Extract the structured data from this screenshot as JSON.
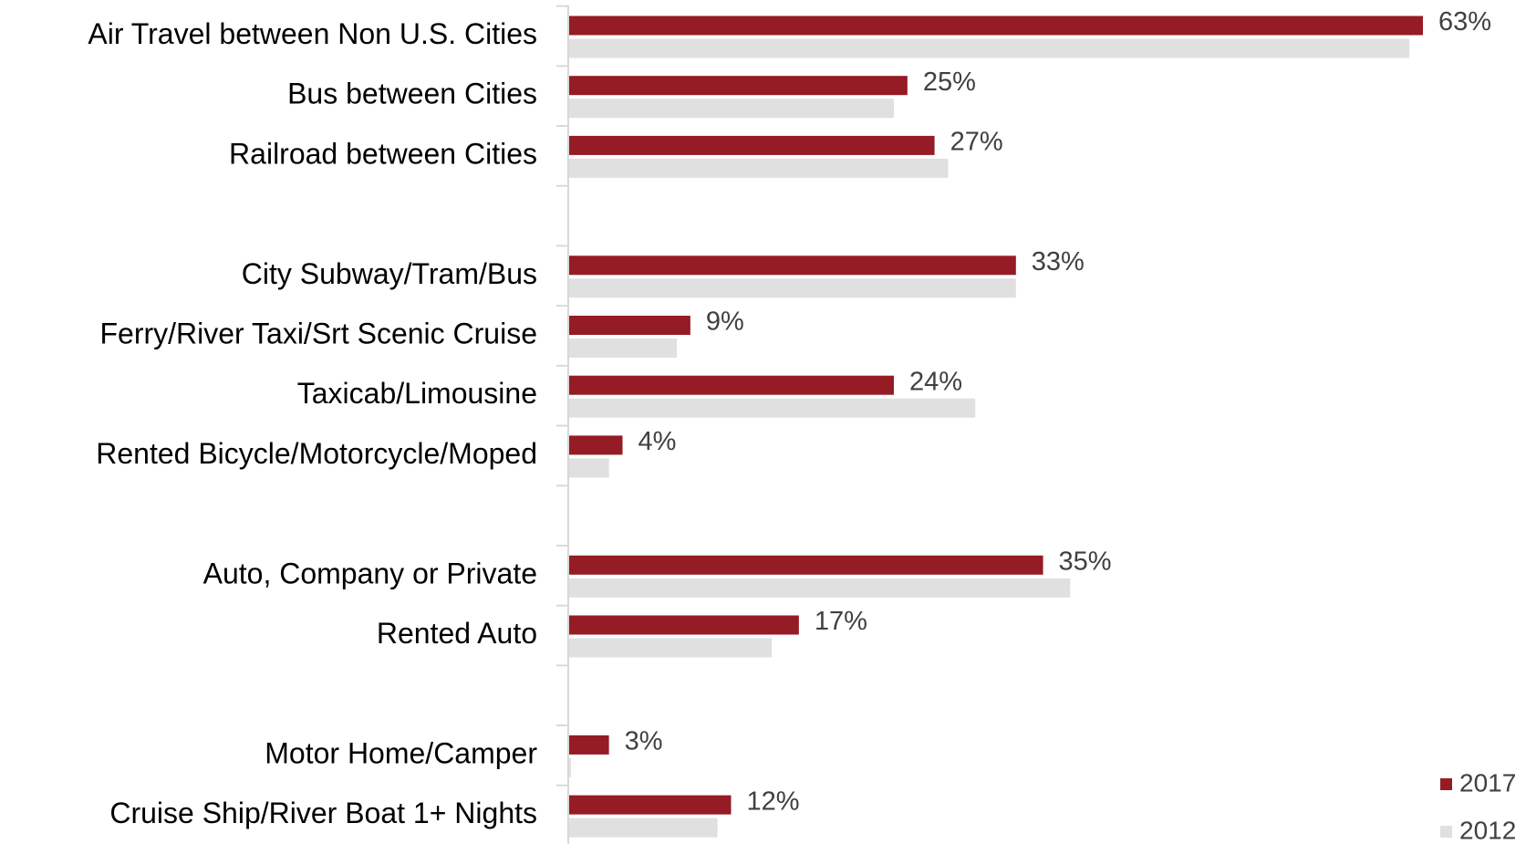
{
  "chart_data": {
    "type": "hbar",
    "categories": [
      "Air Travel between Non U.S. Cities",
      "Bus between Cities",
      "Railroad between Cities",
      null,
      "City Subway/Tram/Bus",
      "Ferry/River Taxi/Srt Scenic Cruise",
      "Taxicab/Limousine",
      "Rented Bicycle/Motorcycle/Moped",
      null,
      "Auto, Company or Private",
      "Rented Auto",
      null,
      "Motor Home/Camper",
      "Cruise Ship/River Boat 1+ Nights"
    ],
    "series": [
      {
        "name": "2017",
        "color": "#951b24",
        "values": [
          63,
          25,
          27,
          null,
          33,
          9,
          24,
          4,
          null,
          35,
          17,
          null,
          3,
          12
        ],
        "value_labels": [
          "63%",
          "25%",
          "27%",
          null,
          "33%",
          "9%",
          "24%",
          "4%",
          null,
          "35%",
          "17%",
          null,
          "3%",
          "12%"
        ]
      },
      {
        "name": "2012",
        "color": "#e0e0e0",
        "values": [
          62,
          24,
          28,
          null,
          33,
          8,
          30,
          3,
          null,
          37,
          15,
          null,
          0,
          11
        ]
      }
    ],
    "legend": "bottom-right"
  }
}
